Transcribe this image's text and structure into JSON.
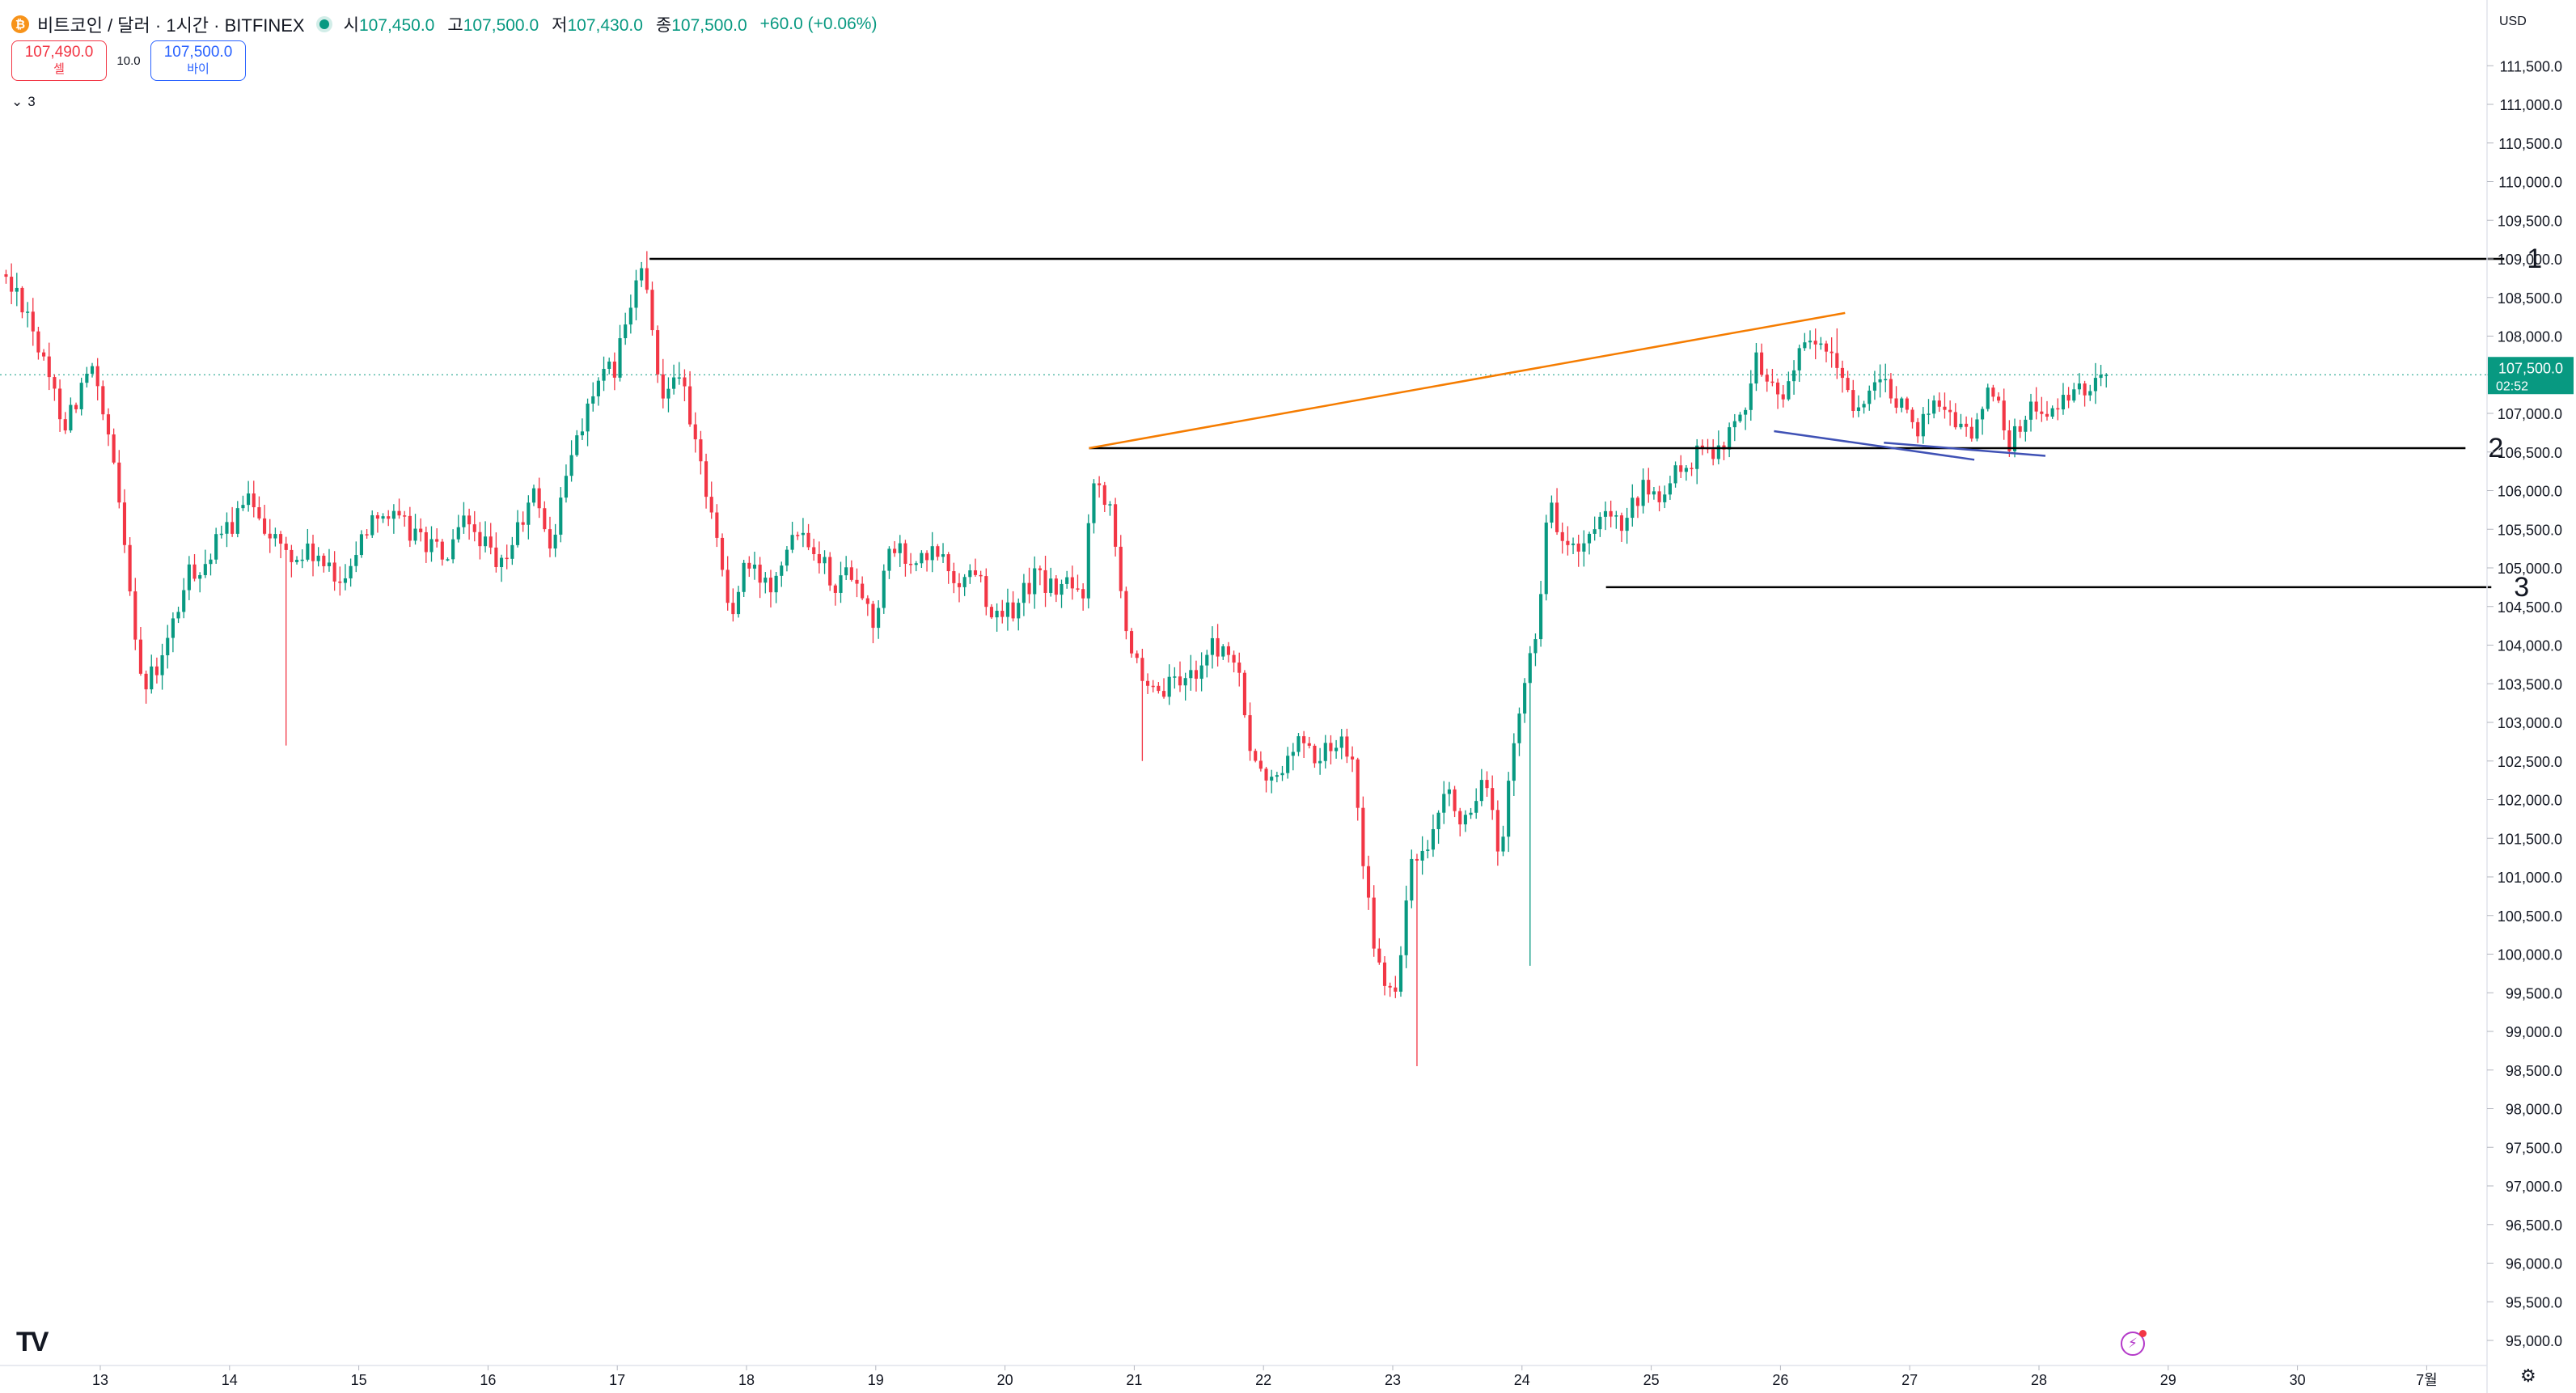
{
  "header": {
    "symbol_title": "비트코인 / 달러 · 1시간 · BITFINEX",
    "coin_icon": "bitcoin-icon",
    "market_status_icon": "market-open-dot",
    "ohlc": [
      {
        "key": "시",
        "value": "107,450.0"
      },
      {
        "key": "고",
        "value": "107,500.0"
      },
      {
        "key": "저",
        "value": "107,430.0"
      },
      {
        "key": "종",
        "value": "107,500.0"
      }
    ],
    "change": "+60.0 (+0.06%)"
  },
  "trade": {
    "sell_price": "107,490.0",
    "sell_label": "셀",
    "spread": "10.0",
    "buy_price": "107,500.0",
    "buy_label": "바이"
  },
  "indicators": {
    "count": "3",
    "toggle_icon": "chevron-down-icon"
  },
  "price_axis": {
    "currency": "USD",
    "last_price": "107,500.0",
    "countdown": "02:52"
  },
  "colors": {
    "up": "#089981",
    "down": "#f23645",
    "last_price": "#089981",
    "orange_line": "#f57c00",
    "blue_line": "#3f51b5",
    "level_line": "#000000"
  },
  "footer": {
    "logo": "TV",
    "flash_icon": "lightning-icon",
    "settings_icon": "gear-icon"
  },
  "chart_data": {
    "type": "candlestick",
    "title": "",
    "ylim": [
      94800,
      111900
    ],
    "y_ticks": [
      "95,000.0",
      "95,500.0",
      "96,000.0",
      "96,500.0",
      "97,000.0",
      "97,500.0",
      "98,000.0",
      "98,500.0",
      "99,000.0",
      "99,500.0",
      "100,000.0",
      "100,500.0",
      "101,000.0",
      "101,500.0",
      "102,000.0",
      "102,500.0",
      "103,000.0",
      "103,500.0",
      "104,000.0",
      "104,500.0",
      "105,000.0",
      "105,500.0",
      "106,000.0",
      "106,500.0",
      "107,000.0",
      "107,500.0",
      "108,000.0",
      "108,500.0",
      "109,000.0",
      "109,500.0",
      "110,000.0",
      "110,500.0",
      "111,000.0",
      "111,500.0"
    ],
    "x_ticks": [
      "13",
      "14",
      "15",
      "16",
      "17",
      "18",
      "19",
      "20",
      "21",
      "22",
      "23",
      "24",
      "25",
      "26",
      "27",
      "28",
      "29",
      "30",
      "7월"
    ],
    "x_tick_pos": [
      12,
      13,
      14,
      15,
      16,
      17,
      18,
      19,
      20,
      21,
      22,
      23,
      24,
      25,
      26,
      27,
      28,
      29,
      30
    ],
    "x_range": [
      11.25,
      30.9
    ],
    "bars_per_day": 24,
    "first_bar": 11.25,
    "path": [
      [
        11.25,
        108800
      ],
      [
        11.45,
        108400
      ],
      [
        11.6,
        107500
      ],
      [
        11.75,
        106900
      ],
      [
        11.95,
        107600
      ],
      [
        12.1,
        106500
      ],
      [
        12.2,
        105500
      ],
      [
        12.35,
        103400
      ],
      [
        12.5,
        103800
      ],
      [
        12.7,
        104900
      ],
      [
        12.85,
        105100
      ],
      [
        13.0,
        105500
      ],
      [
        13.2,
        105900
      ],
      [
        13.35,
        105400
      ],
      [
        13.5,
        105100
      ],
      [
        13.65,
        105200
      ],
      [
        13.85,
        104800
      ],
      [
        14.0,
        105200
      ],
      [
        14.15,
        105800
      ],
      [
        14.3,
        105600
      ],
      [
        14.5,
        105400
      ],
      [
        14.7,
        105100
      ],
      [
        14.85,
        105600
      ],
      [
        15.0,
        105300
      ],
      [
        15.1,
        104900
      ],
      [
        15.25,
        105500
      ],
      [
        15.4,
        106000
      ],
      [
        15.5,
        105200
      ],
      [
        15.7,
        106700
      ],
      [
        15.85,
        107300
      ],
      [
        16.0,
        107600
      ],
      [
        16.1,
        108200
      ],
      [
        16.2,
        108900
      ],
      [
        16.25,
        108500
      ],
      [
        16.35,
        107300
      ],
      [
        16.5,
        107600
      ],
      [
        16.6,
        106700
      ],
      [
        16.75,
        105800
      ],
      [
        16.9,
        104300
      ],
      [
        17.0,
        105000
      ],
      [
        17.2,
        104800
      ],
      [
        17.4,
        105600
      ],
      [
        17.55,
        105300
      ],
      [
        17.7,
        104800
      ],
      [
        17.85,
        105000
      ],
      [
        18.0,
        104300
      ],
      [
        18.15,
        105300
      ],
      [
        18.3,
        105000
      ],
      [
        18.5,
        105200
      ],
      [
        18.65,
        104800
      ],
      [
        18.8,
        105000
      ],
      [
        18.95,
        104300
      ],
      [
        19.1,
        104500
      ],
      [
        19.25,
        104900
      ],
      [
        19.4,
        104700
      ],
      [
        19.5,
        104800
      ],
      [
        19.62,
        104600
      ],
      [
        19.68,
        106000
      ],
      [
        19.75,
        106100
      ],
      [
        19.85,
        105800
      ],
      [
        19.95,
        104300
      ],
      [
        20.1,
        103300
      ],
      [
        20.25,
        103400
      ],
      [
        20.45,
        103600
      ],
      [
        20.65,
        104000
      ],
      [
        20.8,
        103800
      ],
      [
        20.95,
        102400
      ],
      [
        21.1,
        102200
      ],
      [
        21.3,
        102800
      ],
      [
        21.45,
        102500
      ],
      [
        21.6,
        102800
      ],
      [
        21.72,
        102600
      ],
      [
        21.82,
        100700
      ],
      [
        21.95,
        99500
      ],
      [
        22.05,
        99500
      ],
      [
        22.15,
        101100
      ],
      [
        22.3,
        101300
      ],
      [
        22.45,
        102100
      ],
      [
        22.6,
        101600
      ],
      [
        22.75,
        102300
      ],
      [
        22.85,
        101100
      ],
      [
        22.95,
        102600
      ],
      [
        23.05,
        103600
      ],
      [
        23.15,
        104400
      ],
      [
        23.22,
        105900
      ],
      [
        23.35,
        105300
      ],
      [
        23.5,
        105200
      ],
      [
        23.65,
        105600
      ],
      [
        23.8,
        105500
      ],
      [
        23.95,
        106000
      ],
      [
        24.1,
        105900
      ],
      [
        24.25,
        106300
      ],
      [
        24.45,
        106500
      ],
      [
        24.6,
        106700
      ],
      [
        24.72,
        106900
      ],
      [
        24.82,
        107800
      ],
      [
        24.92,
        107400
      ],
      [
        25.0,
        107200
      ],
      [
        25.15,
        107700
      ],
      [
        25.3,
        107900
      ],
      [
        25.45,
        107600
      ],
      [
        25.6,
        107100
      ],
      [
        25.75,
        107300
      ],
      [
        25.9,
        107300
      ],
      [
        26.05,
        106700
      ],
      [
        26.2,
        107200
      ],
      [
        26.35,
        107000
      ],
      [
        26.5,
        106700
      ],
      [
        26.65,
        107400
      ],
      [
        26.8,
        106600
      ],
      [
        26.95,
        107100
      ],
      [
        27.1,
        107000
      ],
      [
        27.3,
        107200
      ],
      [
        27.45,
        107430
      ],
      [
        27.5,
        107500
      ]
    ],
    "annotations": {
      "levels": [
        {
          "label": "1",
          "price": 109000,
          "from": 16.25,
          "to": 30.6
        },
        {
          "label": "2",
          "price": 106550,
          "from": 19.65,
          "to": 30.3
        },
        {
          "label": "3",
          "price": 104750,
          "from": 23.65,
          "to": 30.5
        }
      ],
      "orange_trendline": {
        "from": [
          19.65,
          106550
        ],
        "to": [
          25.5,
          108300
        ]
      },
      "blue_lines": [
        {
          "from": [
            24.95,
            106770
          ],
          "to": [
            26.5,
            106400
          ]
        },
        {
          "from": [
            25.8,
            106620
          ],
          "to": [
            27.05,
            106450
          ]
        }
      ]
    }
  }
}
